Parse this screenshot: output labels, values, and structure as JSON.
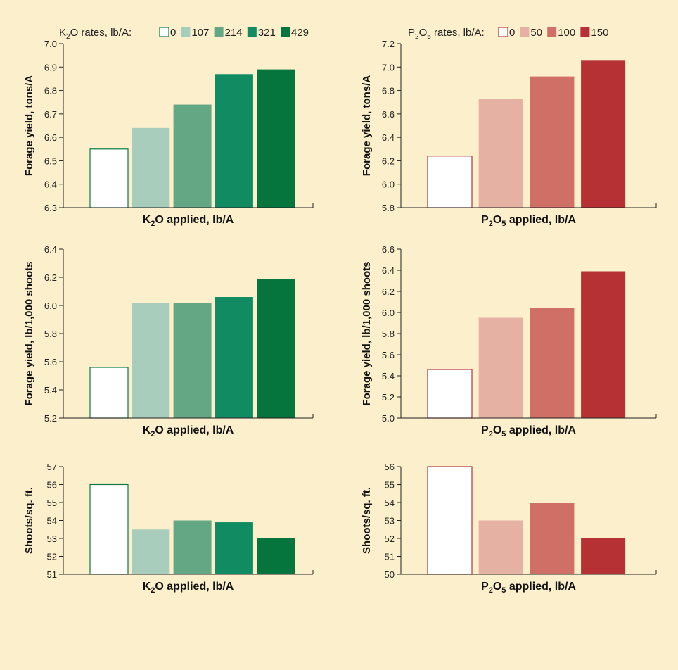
{
  "legends": {
    "k": {
      "prefix": "K",
      "sub": "2",
      "rest": "O rates, lb/A:",
      "items": [
        "0",
        "107",
        "214",
        "321",
        "429"
      ]
    },
    "p": {
      "prefix": "P",
      "sub": "2",
      "mid": "O",
      "sub2": "5",
      "rest": " rates, lb/A:",
      "items": [
        "0",
        "50",
        "100",
        "150"
      ]
    }
  },
  "colors": {
    "background": "#FCEFCB",
    "k_fill": [
      "#FFFFFF",
      "#A8CDBC",
      "#64A784",
      "#118B62",
      "#06743D"
    ],
    "k_stroke": "#0F7A45",
    "p_fill": [
      "#FFFFFF",
      "#E5B1A3",
      "#CF6F66",
      "#B53134"
    ],
    "p_stroke": "#B5353A"
  },
  "chart_data": [
    {
      "type": "bar",
      "group": "k",
      "categories": [
        "0",
        "107",
        "214",
        "321",
        "429"
      ],
      "values": [
        6.55,
        6.64,
        6.74,
        6.87,
        6.89
      ],
      "ylim": [
        6.3,
        7.0
      ],
      "yticks": [
        "6.3",
        "6.4",
        "6.5",
        "6.6",
        "6.7",
        "6.8",
        "6.9",
        "7.0"
      ],
      "ylabel": "Forage yield, tons/A",
      "xlabel": {
        "a": "K",
        "sub": "2",
        "b": "O applied, lb/A"
      }
    },
    {
      "type": "bar",
      "group": "p",
      "categories": [
        "0",
        "50",
        "100",
        "150"
      ],
      "values": [
        6.24,
        6.73,
        6.92,
        7.06
      ],
      "ylim": [
        5.8,
        7.2
      ],
      "yticks": [
        "5.8",
        "6.0",
        "6.2",
        "6.4",
        "6.6",
        "6.8",
        "7.0",
        "7.2"
      ],
      "ylabel": "Forage yield, tons/A",
      "xlabel": {
        "a": "P",
        "sub": "2",
        "b": "O",
        "sub2": "5",
        "c": " applied, lb/A"
      }
    },
    {
      "type": "bar",
      "group": "k",
      "categories": [
        "0",
        "107",
        "214",
        "321",
        "429"
      ],
      "values": [
        5.56,
        6.02,
        6.02,
        6.06,
        6.19
      ],
      "ylim": [
        5.2,
        6.4
      ],
      "yticks": [
        "5.2",
        "5.4",
        "5.6",
        "5.8",
        "6.0",
        "6.2",
        "6.4"
      ],
      "ylabel": "Forage yield, lb/1,000 shoots",
      "xlabel": {
        "a": "K",
        "sub": "2",
        "b": "O applied, lb/A"
      }
    },
    {
      "type": "bar",
      "group": "p",
      "categories": [
        "0",
        "50",
        "100",
        "150"
      ],
      "values": [
        5.46,
        5.95,
        6.04,
        6.39
      ],
      "ylim": [
        5.0,
        6.6
      ],
      "yticks": [
        "5.0",
        "5.2",
        "5.4",
        "5.6",
        "5.8",
        "6.0",
        "6.2",
        "6.4",
        "6.6"
      ],
      "ylabel": "Forage yield, lb/1,000 shoots",
      "xlabel": {
        "a": "P",
        "sub": "2",
        "b": "O",
        "sub2": "5",
        "c": " applied, lb/A"
      }
    },
    {
      "type": "bar",
      "group": "k",
      "categories": [
        "0",
        "107",
        "214",
        "321",
        "429"
      ],
      "values": [
        56,
        53.5,
        54,
        53.9,
        53
      ],
      "ylim": [
        51,
        57
      ],
      "yticks": [
        "51",
        "52",
        "53",
        "54",
        "55",
        "56",
        "57"
      ],
      "ylabel": "Shoots/sq. ft.",
      "xlabel": {
        "a": "K",
        "sub": "2",
        "b": "O applied, lb/A"
      }
    },
    {
      "type": "bar",
      "group": "p",
      "categories": [
        "0",
        "50",
        "100",
        "150"
      ],
      "values": [
        56,
        53,
        54,
        52
      ],
      "ylim": [
        50,
        56
      ],
      "yticks": [
        "50",
        "51",
        "52",
        "53",
        "54",
        "55",
        "56"
      ],
      "ylabel": "Shoots/sq. ft.",
      "xlabel": {
        "a": "P",
        "sub": "2",
        "b": "O",
        "sub2": "5",
        "c": " applied, lb/A"
      }
    }
  ]
}
